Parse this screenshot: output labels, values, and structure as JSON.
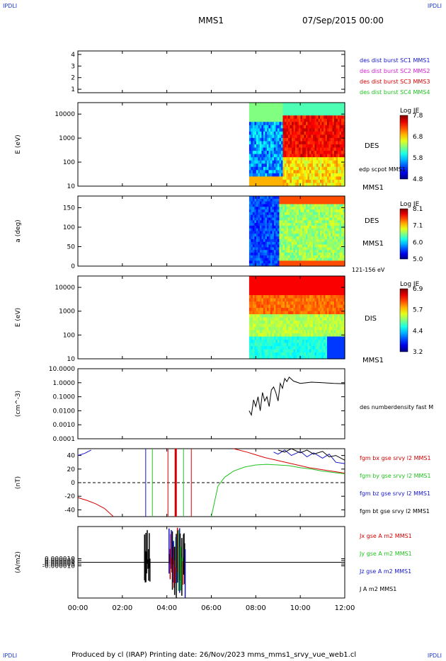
{
  "header": {
    "corner_tl": "IPDLI",
    "corner_tr": "IPDLI",
    "corner_bl": "IPDLI",
    "corner_br": "IPDLI",
    "spacecraft": "MMS1",
    "date": "07/Sep/2015 00:00"
  },
  "footer": {
    "text": "Produced by cl (IRAP)   Printing date: 26/Nov/2023   mms_mms1_srvy_vue_web1.cl"
  },
  "colors": {
    "red": "#d40000",
    "green": "#1fc21f",
    "blue": "#1515c8",
    "magenta": "#d21fd2",
    "black": "#000000"
  },
  "chart_data": [
    {
      "type": "line",
      "id": "burst",
      "ylim": [
        0.7,
        4.3
      ],
      "yticks": [
        "1",
        "2",
        "3",
        "4"
      ],
      "legend": [
        "des dist burst SC1 MMS1",
        "des dist burst SC2 MMS2",
        "des dist burst SC3 MMS3",
        "des dist burst SC4 MMS4"
      ],
      "legend_colors": [
        "#1515c8",
        "#d21fd2",
        "#d40000",
        "#1fc21f"
      ],
      "series": []
    },
    {
      "type": "heatmap",
      "id": "des_energy",
      "ylabel": "E (eV)",
      "yscale": "log",
      "ylim": [
        10,
        30000
      ],
      "yticks": [
        "10",
        "100",
        "1000",
        "10000"
      ],
      "data_start_hour": 7.7,
      "side_labels": [
        "DES",
        "edp scpot MMS1",
        "MMS1"
      ],
      "colorbar": {
        "title": "Log JE",
        "ticks": [
          "7.8",
          "6.8",
          "5.8",
          "4.8"
        ],
        "range": [
          4.8,
          7.8
        ]
      }
    },
    {
      "type": "heatmap",
      "id": "des_pitch",
      "ylabel": "a (deg)",
      "ylim": [
        0,
        180
      ],
      "yticks": [
        "0",
        "50",
        "100",
        "150"
      ],
      "data_start_hour": 7.7,
      "side_labels": [
        "DES",
        "MMS1",
        "121-156 eV"
      ],
      "colorbar": {
        "title": "Log JE",
        "ticks": [
          "8.1",
          "7.1",
          "6.0",
          "5.0"
        ],
        "range": [
          5.0,
          8.1
        ]
      }
    },
    {
      "type": "heatmap",
      "id": "dis_energy",
      "ylabel": "E (eV)",
      "yscale": "log",
      "ylim": [
        10,
        30000
      ],
      "yticks": [
        "10",
        "100",
        "1000",
        "10000"
      ],
      "data_start_hour": 7.7,
      "side_labels": [
        "DIS",
        "MMS1"
      ],
      "colorbar": {
        "title": "Log JE",
        "ticks": [
          "6.9",
          "5.7",
          "4.4",
          "3.2"
        ],
        "range": [
          3.2,
          6.9
        ]
      }
    },
    {
      "type": "line",
      "id": "density",
      "ylabel": "(cm^-3)",
      "yscale": "log",
      "ylim": [
        0.0001,
        10
      ],
      "yticks": [
        "0.0001",
        "0.0010",
        "0.0100",
        "0.1000",
        "1.0000",
        "10.0000"
      ],
      "legend": [
        "des numberdensity fast M"
      ],
      "legend_colors": [
        "#000000"
      ],
      "series": [
        {
          "x": [
            7.7,
            7.8,
            7.9,
            8.0,
            8.1,
            8.2,
            8.3,
            8.4,
            8.5,
            8.6,
            8.7,
            8.8,
            8.9,
            9.0,
            9.1,
            9.2,
            9.3,
            9.4,
            9.5,
            9.7,
            10.0,
            10.5,
            11.0,
            11.5,
            12.0
          ],
          "y": [
            0.01,
            0.005,
            0.06,
            0.02,
            0.1,
            0.01,
            0.2,
            0.05,
            0.1,
            0.02,
            0.3,
            0.5,
            0.2,
            0.05,
            0.9,
            0.4,
            2.0,
            1.2,
            2.5,
            1.3,
            0.9,
            1.1,
            1.0,
            0.9,
            0.85
          ],
          "color": "#000000"
        }
      ]
    },
    {
      "type": "line",
      "id": "fgm",
      "ylabel": "(nT)",
      "ylim": [
        -50,
        50
      ],
      "yticks": [
        "-40",
        "-20",
        "0",
        "20",
        "40"
      ],
      "legend": [
        "fgm bx gse srvy l2 MMS1",
        "fgm by gse srvy l2 MMS1",
        "fgm bz gse srvy l2 MMS1",
        "fgm bt gse srvy l2 MMS1"
      ],
      "legend_colors": [
        "#d40000",
        "#1fc21f",
        "#1515c8",
        "#000000"
      ],
      "series": [
        {
          "name": "bx",
          "color": "#d40000",
          "x": [
            0,
            0.4,
            0.8,
            1.2,
            1.6
          ],
          "y": [
            -22,
            -26,
            -31,
            -38,
            -50
          ]
        },
        {
          "name": "bx",
          "color": "#d40000",
          "x": [
            7.0,
            7.6,
            8.0,
            8.4,
            8.8,
            9.2,
            9.6,
            10.0,
            10.4,
            10.8,
            11.2,
            11.6,
            12.0
          ],
          "y": [
            50,
            45,
            41,
            37,
            34,
            31,
            28,
            25,
            22,
            20,
            18,
            16,
            14
          ]
        },
        {
          "name": "bz",
          "color": "#1515c8",
          "x": [
            0,
            0.3,
            0.6
          ],
          "y": [
            40,
            43,
            48
          ]
        },
        {
          "name": "by",
          "color": "#1fc21f",
          "x": [
            6.0,
            6.3,
            6.6,
            7.0,
            7.5,
            8.0,
            8.5,
            9.0,
            9.5,
            10.0,
            10.5,
            11.0,
            11.5,
            12.0
          ],
          "y": [
            -50,
            -5,
            8,
            17,
            23,
            26,
            27,
            26,
            25,
            22,
            20,
            17,
            15,
            13
          ]
        },
        {
          "name": "bz",
          "color": "#1515c8",
          "x": [
            8.8,
            9.0,
            9.3,
            9.6,
            10.0,
            10.3,
            10.6,
            11.0,
            11.3,
            11.6,
            12.0
          ],
          "y": [
            45,
            42,
            48,
            40,
            46,
            38,
            44,
            36,
            42,
            30,
            28
          ]
        },
        {
          "name": "bt",
          "color": "#000000",
          "x": [
            9.0,
            9.3,
            9.6,
            10.0,
            10.3,
            10.6,
            11.0,
            11.3,
            11.6,
            12.0
          ],
          "y": [
            48,
            45,
            50,
            44,
            48,
            42,
            46,
            38,
            40,
            33
          ]
        }
      ]
    },
    {
      "type": "line",
      "id": "current",
      "ylabel": "(A/m2)",
      "ylim": [
        -0.0001,
        0.0001
      ],
      "yticks": [
        "-0.000010",
        "-0.000005",
        "0.000000",
        "0.000005",
        "0.000010"
      ],
      "legend": [
        "Jx gse A m2 MMS1",
        "Jy gse A m2 MMS1",
        "Jz gse A m2 MMS1",
        "J A m2 MMS1"
      ],
      "legend_colors": [
        "#d40000",
        "#1fc21f",
        "#1515c8",
        "#000000"
      ],
      "series": []
    }
  ],
  "time_axis": {
    "xlim": [
      0,
      12
    ],
    "ticks": [
      "00:00",
      "02:00",
      "04:00",
      "06:00",
      "08:00",
      "10:00",
      "12:00"
    ]
  }
}
